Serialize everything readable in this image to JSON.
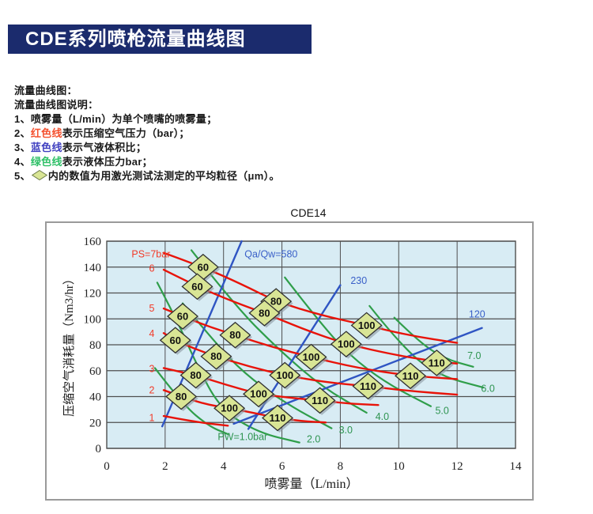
{
  "header": {
    "title": "CDE系列喷枪流量曲线图"
  },
  "notes": {
    "lines": [
      {
        "segments": [
          {
            "text": "流量曲线图："
          }
        ]
      },
      {
        "segments": [
          {
            "text": "流量曲线图说明："
          }
        ]
      },
      {
        "segments": [
          {
            "text": "1、喷雾量（L/min）为单个喷嘴的喷雾量；"
          }
        ]
      },
      {
        "segments": [
          {
            "text": "2、"
          },
          {
            "text": "红色线",
            "color": "#f4502e"
          },
          {
            "text": "表示压缩空气压力（bar）；"
          }
        ]
      },
      {
        "segments": [
          {
            "text": "3、"
          },
          {
            "text": "蓝色线",
            "color": "#4040c0"
          },
          {
            "text": "表示气液体积比；"
          }
        ]
      },
      {
        "segments": [
          {
            "text": "4、"
          },
          {
            "text": "绿色线",
            "color": "#2fc068"
          },
          {
            "text": "表示液体压力bar；"
          }
        ]
      },
      {
        "segments": [
          {
            "text": "5、"
          },
          {
            "icon": "diamond"
          },
          {
            "text": "内的数值为用激光测试法测定的平均粒径（μm）。"
          }
        ]
      }
    ]
  },
  "chart_data": {
    "type": "line",
    "title": "CDE14",
    "xlabel": "喷雾量（L/min）",
    "ylabel": "压缩空气消耗量（Nm3/hr）",
    "xlim": [
      0,
      14
    ],
    "ylim": [
      0,
      160
    ],
    "xticks": [
      0,
      2,
      4,
      6,
      8,
      10,
      12,
      14
    ],
    "yticks": [
      0,
      20,
      40,
      60,
      80,
      100,
      120,
      140,
      160
    ],
    "grid": true,
    "legend_note": "red=air pressure PS(bar), green=liquid pressure PW(bar), blue=air/liquid ratio Qa/Qw, diamonds=mean droplet size um",
    "red_series": [
      {
        "label": "PS=7bar",
        "label_x": 0.85,
        "label_y": 150,
        "points": [
          [
            1.95,
            151
          ],
          [
            3.3,
            140
          ],
          [
            4.6,
            127
          ],
          [
            5.8,
            113.5
          ],
          [
            7.3,
            103
          ],
          [
            8.9,
            95
          ],
          [
            10.4,
            87
          ],
          [
            12,
            81.5
          ]
        ]
      },
      {
        "label": "6",
        "label_x": 1.45,
        "label_y": 139,
        "points": [
          [
            1.95,
            138
          ],
          [
            3.1,
            125
          ],
          [
            4.25,
            114
          ],
          [
            5.4,
            104.5
          ],
          [
            6.8,
            91.5
          ],
          [
            8.2,
            80.5
          ],
          [
            9.9,
            72
          ],
          [
            11.3,
            67
          ],
          [
            12,
            65.5
          ]
        ]
      },
      {
        "label": "5",
        "label_x": 1.45,
        "label_y": 108,
        "points": [
          [
            1.95,
            108
          ],
          [
            2.6,
            102
          ],
          [
            3.5,
            94
          ],
          [
            4.4,
            87.5
          ],
          [
            5.7,
            78
          ],
          [
            7.0,
            70.5
          ],
          [
            8.6,
            62
          ],
          [
            10.4,
            56
          ],
          [
            12,
            53.5
          ]
        ]
      },
      {
        "label": "4",
        "label_x": 1.45,
        "label_y": 88.5,
        "points": [
          [
            1.95,
            89
          ],
          [
            2.35,
            83.5
          ],
          [
            3.0,
            77
          ],
          [
            3.75,
            71
          ],
          [
            4.9,
            63
          ],
          [
            6.1,
            56.5
          ],
          [
            7.5,
            51
          ],
          [
            8.95,
            48
          ],
          [
            10.5,
            44
          ],
          [
            12,
            41.5
          ]
        ]
      },
      {
        "label": "3",
        "label_x": 1.45,
        "label_y": 61.5,
        "points": [
          [
            1.95,
            62
          ],
          [
            3.05,
            56.5
          ],
          [
            4.1,
            49
          ],
          [
            5.2,
            42
          ],
          [
            6.3,
            39
          ],
          [
            7.3,
            37
          ],
          [
            8.3,
            34.5
          ],
          [
            9.3,
            33.5
          ]
        ]
      },
      {
        "label": "2",
        "label_x": 1.45,
        "label_y": 45,
        "points": [
          [
            1.95,
            45
          ],
          [
            2.55,
            40
          ],
          [
            3.4,
            34
          ],
          [
            4.2,
            31
          ],
          [
            5.0,
            27.5
          ],
          [
            5.85,
            23.5
          ],
          [
            6.7,
            21
          ],
          [
            7.5,
            20
          ]
        ]
      },
      {
        "label": "1",
        "label_x": 1.45,
        "label_y": 23.5,
        "points": [
          [
            1.95,
            25
          ],
          [
            3.0,
            20.5
          ],
          [
            4.15,
            17.5
          ]
        ]
      }
    ],
    "green_series": [
      {
        "label": "PW=1.0bar",
        "label_x": 3.8,
        "label_y": 9,
        "points": [
          [
            1.65,
            62
          ],
          [
            2.6,
            34
          ],
          [
            3.5,
            17
          ],
          [
            4.15,
            11
          ]
        ]
      },
      {
        "label": "2.0",
        "label_x": 6.85,
        "label_y": 7,
        "points": [
          [
            1.73,
            128
          ],
          [
            2.45,
            97
          ],
          [
            3.05,
            66
          ],
          [
            3.9,
            30
          ],
          [
            5.2,
            12
          ],
          [
            6.6,
            4.5
          ]
        ]
      },
      {
        "label": "3.0",
        "label_x": 7.95,
        "label_y": 14,
        "points": [
          [
            2.6,
            112
          ],
          [
            3.95,
            75
          ],
          [
            5.0,
            52.5
          ],
          [
            6.3,
            32.5
          ],
          [
            7.7,
            15.5
          ]
        ]
      },
      {
        "label": "4.0",
        "label_x": 9.2,
        "label_y": 24.5,
        "points": [
          [
            2.9,
            153
          ],
          [
            4.4,
            110
          ],
          [
            5.9,
            76
          ],
          [
            7.4,
            47
          ],
          [
            8.9,
            27.5
          ]
        ]
      },
      {
        "label": "5.0",
        "label_x": 11.25,
        "label_y": 29,
        "points": [
          [
            6.1,
            132
          ],
          [
            7.2,
            100
          ],
          [
            8.3,
            72
          ],
          [
            9.6,
            50
          ],
          [
            11.1,
            32.5
          ]
        ]
      },
      {
        "label": "6.0",
        "label_x": 12.82,
        "label_y": 46,
        "points": [
          [
            9.0,
            110
          ],
          [
            10.2,
            76
          ],
          [
            11.4,
            56
          ],
          [
            12.9,
            47
          ]
        ]
      },
      {
        "label": "7.0",
        "label_x": 12.35,
        "label_y": 71.5,
        "points": [
          [
            9.85,
            101
          ],
          [
            10.7,
            82
          ],
          [
            11.6,
            69
          ],
          [
            12.55,
            63
          ]
        ]
      }
    ],
    "blue_series": [
      {
        "label": "Qa/Qw=580",
        "label_x": 4.72,
        "label_y": 150,
        "points": [
          [
            1.9,
            17
          ],
          [
            4.62,
            160
          ]
        ]
      },
      {
        "label": "230",
        "label_x": 8.35,
        "label_y": 129.5,
        "points": [
          [
            4.85,
            15
          ],
          [
            8.0,
            126
          ]
        ]
      },
      {
        "label": "120",
        "label_x": 12.4,
        "label_y": 103.5,
        "points": [
          [
            4.35,
            19
          ],
          [
            12.85,
            93
          ]
        ]
      }
    ],
    "diamond_markers": [
      {
        "value": "60",
        "x": 3.3,
        "y": 140
      },
      {
        "value": "60",
        "x": 3.1,
        "y": 125
      },
      {
        "value": "60",
        "x": 2.6,
        "y": 102
      },
      {
        "value": "60",
        "x": 2.35,
        "y": 83.5
      },
      {
        "value": "80",
        "x": 5.8,
        "y": 113.5
      },
      {
        "value": "80",
        "x": 5.4,
        "y": 104.5
      },
      {
        "value": "80",
        "x": 4.4,
        "y": 87.5
      },
      {
        "value": "80",
        "x": 3.75,
        "y": 71
      },
      {
        "value": "80",
        "x": 3.05,
        "y": 56.5
      },
      {
        "value": "80",
        "x": 2.55,
        "y": 40
      },
      {
        "value": "100",
        "x": 8.9,
        "y": 95
      },
      {
        "value": "100",
        "x": 8.2,
        "y": 80.5
      },
      {
        "value": "100",
        "x": 7.0,
        "y": 70.5
      },
      {
        "value": "100",
        "x": 6.1,
        "y": 56.5
      },
      {
        "value": "100",
        "x": 5.2,
        "y": 42
      },
      {
        "value": "100",
        "x": 4.2,
        "y": 31
      },
      {
        "value": "110",
        "x": 11.3,
        "y": 66
      },
      {
        "value": "110",
        "x": 10.4,
        "y": 56
      },
      {
        "value": "110",
        "x": 8.95,
        "y": 48
      },
      {
        "value": "110",
        "x": 7.3,
        "y": 37
      },
      {
        "value": "110",
        "x": 5.85,
        "y": 23.5
      }
    ],
    "colors": {
      "red": "#e81309",
      "red_label": "#f23a28",
      "green": "#2f9e4a",
      "green_label": "#2e9450",
      "blue": "#2f55c3",
      "blue_label": "#3a60c8",
      "plot_bg": "#d8ecf4",
      "grid": "#4f4f4f",
      "diamond_fill": "#d9e595",
      "diamond_stroke": "#303030",
      "box_border": "#9a9a9a",
      "tick_color": "#222222"
    }
  }
}
